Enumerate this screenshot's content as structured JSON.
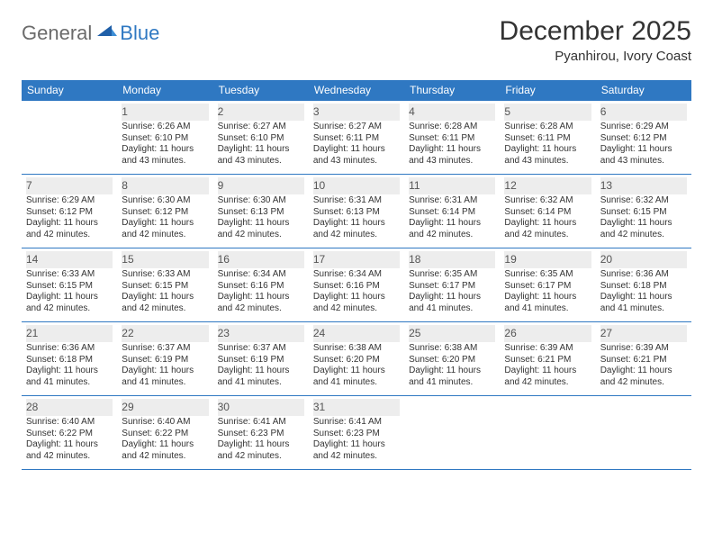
{
  "logo": {
    "word1": "General",
    "word2": "Blue"
  },
  "title": "December 2025",
  "location": "Pyanhirou, Ivory Coast",
  "colors": {
    "header_bg": "#2f78c2",
    "header_text": "#ffffff",
    "rule": "#2f78c2",
    "daynum_bg": "#ededed",
    "text": "#333333",
    "logo_gray": "#6b6b6b",
    "logo_blue": "#2f78c2",
    "page_bg": "#ffffff"
  },
  "weekdays": [
    "Sunday",
    "Monday",
    "Tuesday",
    "Wednesday",
    "Thursday",
    "Friday",
    "Saturday"
  ],
  "weeks": [
    [
      null,
      {
        "n": "1",
        "sr": "6:26 AM",
        "ss": "6:10 PM",
        "dl": "11 hours and 43 minutes."
      },
      {
        "n": "2",
        "sr": "6:27 AM",
        "ss": "6:10 PM",
        "dl": "11 hours and 43 minutes."
      },
      {
        "n": "3",
        "sr": "6:27 AM",
        "ss": "6:11 PM",
        "dl": "11 hours and 43 minutes."
      },
      {
        "n": "4",
        "sr": "6:28 AM",
        "ss": "6:11 PM",
        "dl": "11 hours and 43 minutes."
      },
      {
        "n": "5",
        "sr": "6:28 AM",
        "ss": "6:11 PM",
        "dl": "11 hours and 43 minutes."
      },
      {
        "n": "6",
        "sr": "6:29 AM",
        "ss": "6:12 PM",
        "dl": "11 hours and 43 minutes."
      }
    ],
    [
      {
        "n": "7",
        "sr": "6:29 AM",
        "ss": "6:12 PM",
        "dl": "11 hours and 42 minutes."
      },
      {
        "n": "8",
        "sr": "6:30 AM",
        "ss": "6:12 PM",
        "dl": "11 hours and 42 minutes."
      },
      {
        "n": "9",
        "sr": "6:30 AM",
        "ss": "6:13 PM",
        "dl": "11 hours and 42 minutes."
      },
      {
        "n": "10",
        "sr": "6:31 AM",
        "ss": "6:13 PM",
        "dl": "11 hours and 42 minutes."
      },
      {
        "n": "11",
        "sr": "6:31 AM",
        "ss": "6:14 PM",
        "dl": "11 hours and 42 minutes."
      },
      {
        "n": "12",
        "sr": "6:32 AM",
        "ss": "6:14 PM",
        "dl": "11 hours and 42 minutes."
      },
      {
        "n": "13",
        "sr": "6:32 AM",
        "ss": "6:15 PM",
        "dl": "11 hours and 42 minutes."
      }
    ],
    [
      {
        "n": "14",
        "sr": "6:33 AM",
        "ss": "6:15 PM",
        "dl": "11 hours and 42 minutes."
      },
      {
        "n": "15",
        "sr": "6:33 AM",
        "ss": "6:15 PM",
        "dl": "11 hours and 42 minutes."
      },
      {
        "n": "16",
        "sr": "6:34 AM",
        "ss": "6:16 PM",
        "dl": "11 hours and 42 minutes."
      },
      {
        "n": "17",
        "sr": "6:34 AM",
        "ss": "6:16 PM",
        "dl": "11 hours and 42 minutes."
      },
      {
        "n": "18",
        "sr": "6:35 AM",
        "ss": "6:17 PM",
        "dl": "11 hours and 41 minutes."
      },
      {
        "n": "19",
        "sr": "6:35 AM",
        "ss": "6:17 PM",
        "dl": "11 hours and 41 minutes."
      },
      {
        "n": "20",
        "sr": "6:36 AM",
        "ss": "6:18 PM",
        "dl": "11 hours and 41 minutes."
      }
    ],
    [
      {
        "n": "21",
        "sr": "6:36 AM",
        "ss": "6:18 PM",
        "dl": "11 hours and 41 minutes."
      },
      {
        "n": "22",
        "sr": "6:37 AM",
        "ss": "6:19 PM",
        "dl": "11 hours and 41 minutes."
      },
      {
        "n": "23",
        "sr": "6:37 AM",
        "ss": "6:19 PM",
        "dl": "11 hours and 41 minutes."
      },
      {
        "n": "24",
        "sr": "6:38 AM",
        "ss": "6:20 PM",
        "dl": "11 hours and 41 minutes."
      },
      {
        "n": "25",
        "sr": "6:38 AM",
        "ss": "6:20 PM",
        "dl": "11 hours and 41 minutes."
      },
      {
        "n": "26",
        "sr": "6:39 AM",
        "ss": "6:21 PM",
        "dl": "11 hours and 42 minutes."
      },
      {
        "n": "27",
        "sr": "6:39 AM",
        "ss": "6:21 PM",
        "dl": "11 hours and 42 minutes."
      }
    ],
    [
      {
        "n": "28",
        "sr": "6:40 AM",
        "ss": "6:22 PM",
        "dl": "11 hours and 42 minutes."
      },
      {
        "n": "29",
        "sr": "6:40 AM",
        "ss": "6:22 PM",
        "dl": "11 hours and 42 minutes."
      },
      {
        "n": "30",
        "sr": "6:41 AM",
        "ss": "6:23 PM",
        "dl": "11 hours and 42 minutes."
      },
      {
        "n": "31",
        "sr": "6:41 AM",
        "ss": "6:23 PM",
        "dl": "11 hours and 42 minutes."
      },
      null,
      null,
      null
    ]
  ],
  "labels": {
    "sunrise": "Sunrise:",
    "sunset": "Sunset:",
    "daylight": "Daylight:"
  }
}
